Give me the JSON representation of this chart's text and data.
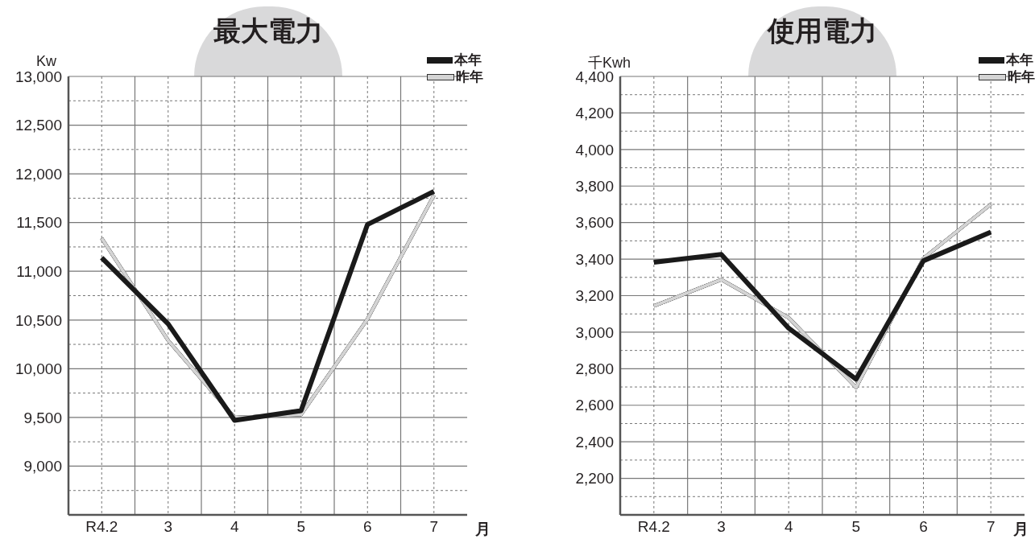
{
  "chart_data": [
    {
      "type": "line",
      "title": "最大電力",
      "ylabel": "Kw",
      "xlabel": "月",
      "categories": [
        "R4.2",
        "3",
        "4",
        "5",
        "6",
        "7"
      ],
      "legend": "top right",
      "grid": true,
      "series": [
        {
          "name": "本年",
          "color": "#1a1a1a",
          "values": [
            11140,
            10460,
            9470,
            9570,
            11480,
            11820
          ]
        },
        {
          "name": "昨年",
          "color": "#d4d4d4",
          "values": [
            11340,
            10290,
            9500,
            9530,
            10510,
            11780
          ]
        }
      ],
      "ylim": [
        8500,
        13000
      ],
      "yticks": [
        {
          "value": 8500,
          "label": null
        },
        {
          "value": 8750,
          "label": null
        },
        {
          "value": 9000,
          "label": "9,000"
        },
        {
          "value": 9250,
          "label": null
        },
        {
          "value": 9500,
          "label": "9,500"
        },
        {
          "value": 9750,
          "label": null
        },
        {
          "value": 10000,
          "label": "10,000"
        },
        {
          "value": 10250,
          "label": null
        },
        {
          "value": 10500,
          "label": "10,500"
        },
        {
          "value": 10750,
          "label": null
        },
        {
          "value": 11000,
          "label": "11,000"
        },
        {
          "value": 11250,
          "label": null
        },
        {
          "value": 11500,
          "label": "11,500"
        },
        {
          "value": 11750,
          "label": null
        },
        {
          "value": 12000,
          "label": "12,000"
        },
        {
          "value": 12250,
          "label": null
        },
        {
          "value": 12500,
          "label": "12,500"
        },
        {
          "value": 12750,
          "label": null
        },
        {
          "value": 13000,
          "label": "13,000"
        }
      ]
    },
    {
      "type": "line",
      "title": "使用電力",
      "ylabel": "千Kwh",
      "xlabel": "月",
      "categories": [
        "R4.2",
        "3",
        "4",
        "5",
        "6",
        "7"
      ],
      "legend": "top right",
      "grid": true,
      "series": [
        {
          "name": "本年",
          "color": "#1a1a1a",
          "values": [
            3383,
            3426,
            3022,
            2743,
            3391,
            3548
          ]
        },
        {
          "name": "昨年",
          "color": "#d4d4d4",
          "values": [
            3143,
            3288,
            3079,
            2697,
            3405,
            3700
          ]
        }
      ],
      "ylim": [
        2000,
        4400
      ],
      "yticks": [
        {
          "value": 2000,
          "label": null
        },
        {
          "value": 2100,
          "label": null
        },
        {
          "value": 2200,
          "label": "2,200"
        },
        {
          "value": 2300,
          "label": null
        },
        {
          "value": 2400,
          "label": "2,400"
        },
        {
          "value": 2500,
          "label": null
        },
        {
          "value": 2600,
          "label": "2,600"
        },
        {
          "value": 2700,
          "label": null
        },
        {
          "value": 2800,
          "label": "2,800"
        },
        {
          "value": 2900,
          "label": null
        },
        {
          "value": 3000,
          "label": "3,000"
        },
        {
          "value": 3100,
          "label": null
        },
        {
          "value": 3200,
          "label": "3,200"
        },
        {
          "value": 3300,
          "label": null
        },
        {
          "value": 3400,
          "label": "3,400"
        },
        {
          "value": 3500,
          "label": null
        },
        {
          "value": 3600,
          "label": "3,600"
        },
        {
          "value": 3700,
          "label": null
        },
        {
          "value": 3800,
          "label": "3,800"
        },
        {
          "value": 3900,
          "label": null
        },
        {
          "value": 4000,
          "label": "4,000"
        },
        {
          "value": 4100,
          "label": null
        },
        {
          "value": 4200,
          "label": "4,200"
        },
        {
          "value": 4300,
          "label": null
        },
        {
          "value": 4400,
          "label": "4,400"
        }
      ]
    }
  ]
}
